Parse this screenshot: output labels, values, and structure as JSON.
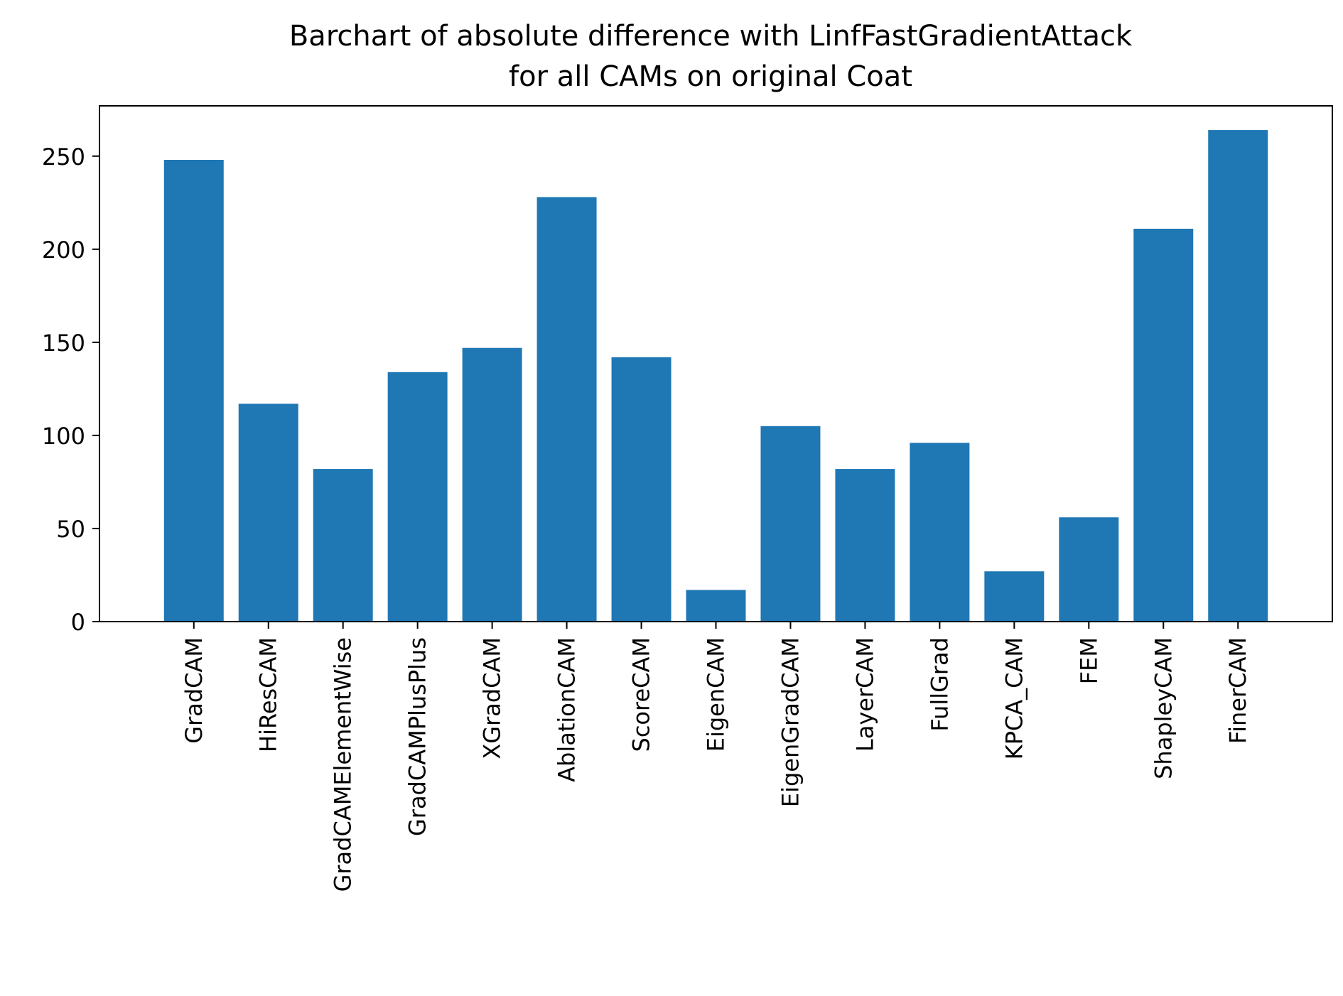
{
  "chart_data": {
    "type": "bar",
    "title": "Barchart of absolute difference with LinfFastGradientAttack",
    "subtitle": "for all CAMs on original Coat",
    "xlabel": "",
    "ylabel": "",
    "categories": [
      "GradCAM",
      "HiResCAM",
      "GradCAMElementWise",
      "GradCAMPlusPlus",
      "XGradCAM",
      "AblationCAM",
      "ScoreCAM",
      "EigenCAM",
      "EigenGradCAM",
      "LayerCAM",
      "FullGrad",
      "KPCA_CAM",
      "FEM",
      "ShapleyCAM",
      "FinerCAM"
    ],
    "values": [
      248,
      117,
      82,
      134,
      147,
      228,
      142,
      17,
      105,
      82,
      96,
      27,
      56,
      211,
      264
    ],
    "ylim": [
      0,
      277
    ],
    "yticks": [
      0,
      50,
      100,
      150,
      200,
      250
    ],
    "grid": false,
    "legend": "none",
    "bar_color": "#1f77b4"
  }
}
